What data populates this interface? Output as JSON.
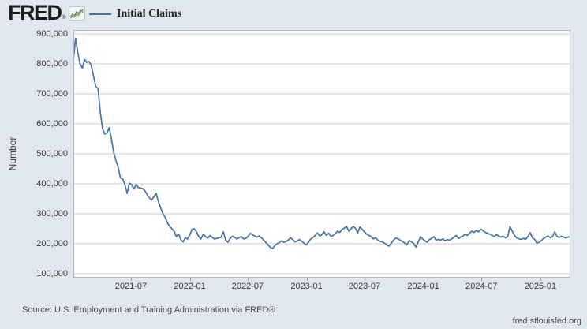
{
  "header": {
    "logo_text": "FRED",
    "logo_reg": "®"
  },
  "footer": {
    "source": "Source: U.S. Employment and Training Administration via FRED®",
    "site": "fred.stlouisfed.org"
  },
  "colors": {
    "background": "#e1e7ee",
    "plot_background": "#ffffff",
    "line": "#4572a7",
    "grid": "#c9cdd2",
    "plot_border": "#aeb4ba",
    "tick": "#9aa1a8",
    "text": "#3b3b3b",
    "logo_green": "#7fae3f",
    "logo_blue": "#5a7fa5"
  },
  "chart_data": {
    "type": "line",
    "series_name": "Initial Claims",
    "title": "",
    "xlabel": "",
    "ylabel": "Number",
    "legend_position": "top-left",
    "grid": "horizontal-only",
    "frequency": "weekly",
    "x_start": "2021-01",
    "x_end": "2025-04",
    "x_ticks": [
      "2021-07",
      "2022-01",
      "2022-07",
      "2023-01",
      "2023-07",
      "2024-01",
      "2024-07",
      "2025-01"
    ],
    "y_ticks": [
      "900,000",
      "800,000",
      "700,000",
      "600,000",
      "500,000",
      "400,000",
      "300,000",
      "200,000",
      "100,000"
    ],
    "y_tick_values": [
      900000,
      800000,
      700000,
      600000,
      500000,
      400000,
      300000,
      200000,
      100000
    ],
    "ylim": [
      87000,
      913000
    ],
    "values_thousands": [
      812,
      886,
      836,
      800,
      786,
      815,
      805,
      808,
      795,
      760,
      724,
      718,
      640,
      585,
      566,
      570,
      588,
      550,
      505,
      478,
      455,
      420,
      416,
      398,
      368,
      402,
      398,
      382,
      398,
      388,
      386,
      384,
      376,
      364,
      352,
      346,
      358,
      368,
      340,
      320,
      300,
      288,
      270,
      258,
      250,
      242,
      224,
      232,
      214,
      206,
      220,
      216,
      230,
      248,
      250,
      240,
      224,
      216,
      232,
      225,
      218,
      228,
      222,
      216,
      218,
      220,
      222,
      240,
      212,
      205,
      218,
      225,
      222,
      216,
      220,
      224,
      216,
      218,
      224,
      235,
      230,
      226,
      222,
      226,
      220,
      212,
      204,
      196,
      188,
      184,
      194,
      200,
      204,
      210,
      205,
      208,
      212,
      220,
      214,
      206,
      210,
      214,
      208,
      202,
      196,
      205,
      216,
      220,
      228,
      236,
      226,
      230,
      240,
      228,
      235,
      225,
      228,
      234,
      242,
      238,
      248,
      252,
      258,
      242,
      250,
      258,
      252,
      236,
      256,
      248,
      240,
      232,
      228,
      224,
      216,
      220,
      212,
      208,
      206,
      202,
      196,
      192,
      202,
      212,
      219,
      216,
      212,
      208,
      202,
      197,
      211,
      206,
      201,
      189,
      205,
      224,
      216,
      210,
      205,
      214,
      218,
      224,
      212,
      215,
      212,
      216,
      210,
      214,
      212,
      216,
      222,
      228,
      218,
      222,
      226,
      232,
      228,
      236,
      242,
      238,
      245,
      240,
      249,
      243,
      238,
      235,
      232,
      228,
      224,
      230,
      226,
      222,
      225,
      220,
      224,
      258,
      242,
      228,
      220,
      216,
      215,
      218,
      215,
      224,
      237,
      220,
      215,
      202,
      205,
      210,
      218,
      222,
      226,
      220,
      224,
      240,
      224,
      221,
      225,
      222,
      219,
      223,
      222
    ]
  }
}
